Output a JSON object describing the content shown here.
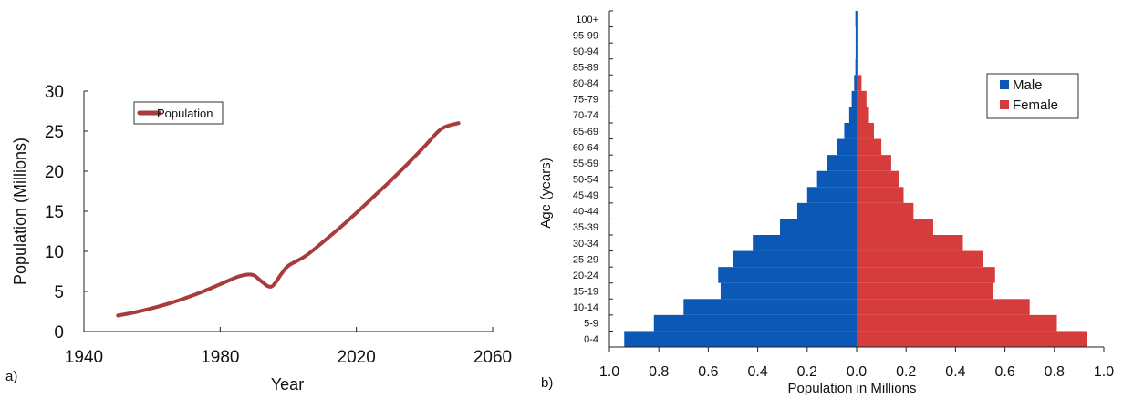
{
  "chart_data": [
    {
      "type": "line",
      "panel_label": "a)",
      "xlabel": "Year",
      "ylabel": "Population (Millions)",
      "xlim": [
        1940,
        2060
      ],
      "ylim": [
        0,
        30
      ],
      "xticks": [
        "1940",
        "1980",
        "2020",
        "2060"
      ],
      "yticks": [
        "0",
        "5",
        "10",
        "15",
        "20",
        "25",
        "30"
      ],
      "grid": false,
      "legend_position": "top-left",
      "series": [
        {
          "name": "Population",
          "color": "#a83c3c",
          "x": [
            1950,
            1955,
            1960,
            1965,
            1970,
            1975,
            1980,
            1985,
            1988,
            1990,
            1992,
            1995,
            1998,
            2000,
            2005,
            2010,
            2015,
            2020,
            2025,
            2030,
            2035,
            2040,
            2045,
            2050
          ],
          "y": [
            2.0,
            2.4,
            2.9,
            3.5,
            4.2,
            5.0,
            5.9,
            6.8,
            7.1,
            7.0,
            6.3,
            5.6,
            7.2,
            8.2,
            9.4,
            11.1,
            12.9,
            14.8,
            16.8,
            18.8,
            20.9,
            23.1,
            25.3,
            26.0
          ]
        }
      ]
    },
    {
      "type": "bar",
      "orientation": "horizontal",
      "panel_label": "b)",
      "xlabel": "Population in Millions",
      "ylabel": "Age (years)",
      "xlim": [
        -1.0,
        1.0
      ],
      "xticks": [
        "1.0",
        "0.8",
        "0.6",
        "0.4",
        "0.2",
        "0.0",
        "0.2",
        "0.4",
        "0.6",
        "0.8",
        "1.0"
      ],
      "grid": false,
      "legend_position": "top-right",
      "categories": [
        "0-4",
        "5-9",
        "10-14",
        "15-19",
        "20-24",
        "25-29",
        "30-34",
        "35-39",
        "40-44",
        "45-49",
        "50-54",
        "55-59",
        "60-64",
        "65-69",
        "70-74",
        "75-79",
        "80-84",
        "85-89",
        "90-94",
        "95-99",
        "100+"
      ],
      "series": [
        {
          "name": "Male",
          "color": "#0b58b6",
          "values": [
            0.94,
            0.82,
            0.7,
            0.55,
            0.56,
            0.5,
            0.42,
            0.31,
            0.24,
            0.2,
            0.16,
            0.12,
            0.08,
            0.05,
            0.03,
            0.02,
            0.01,
            0.005,
            0.004,
            0.004,
            0.005
          ]
        },
        {
          "name": "Female",
          "color": "#d63c3c",
          "values": [
            0.93,
            0.81,
            0.7,
            0.55,
            0.56,
            0.51,
            0.43,
            0.31,
            0.23,
            0.19,
            0.17,
            0.14,
            0.1,
            0.07,
            0.05,
            0.04,
            0.02,
            0.005,
            0.004,
            0.004,
            0.005
          ]
        }
      ]
    }
  ]
}
